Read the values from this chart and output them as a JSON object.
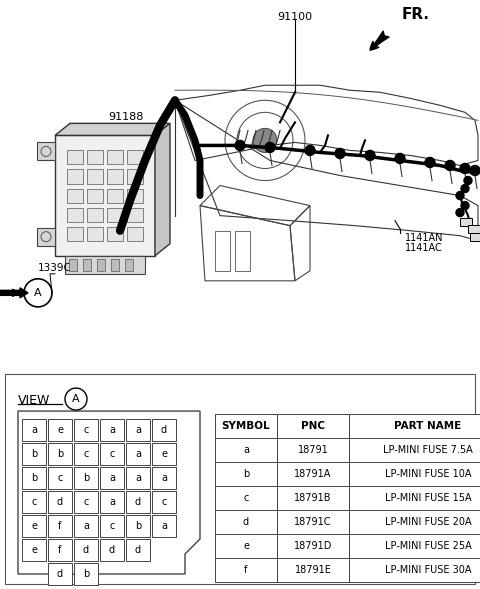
{
  "bg_color": "#ffffff",
  "view_section": {
    "fuse_grid": {
      "rows": [
        [
          "a",
          "e",
          "c",
          "a",
          "a",
          "d"
        ],
        [
          "b",
          "b",
          "c",
          "c",
          "a",
          "e"
        ],
        [
          "b",
          "c",
          "b",
          "a",
          "a",
          "a"
        ],
        [
          "c",
          "d",
          "c",
          "a",
          "d",
          "c"
        ],
        [
          "e",
          "f",
          "a",
          "c",
          "b",
          "a"
        ],
        [
          "e",
          "f",
          "d",
          "d",
          "d",
          ""
        ]
      ],
      "bottom_row": [
        "d",
        "b"
      ]
    },
    "table": {
      "headers": [
        "SYMBOL",
        "PNC",
        "PART NAME"
      ],
      "rows": [
        [
          "a",
          "18791",
          "LP-MINI FUSE 7.5A"
        ],
        [
          "b",
          "18791A",
          "LP-MINI FUSE 10A"
        ],
        [
          "c",
          "18791B",
          "LP-MINI FUSE 15A"
        ],
        [
          "d",
          "18791C",
          "LP-MINI FUSE 20A"
        ],
        [
          "e",
          "18791D",
          "LP-MINI FUSE 25A"
        ],
        [
          "f",
          "18791E",
          "LP-MINI FUSE 30A"
        ]
      ]
    }
  }
}
